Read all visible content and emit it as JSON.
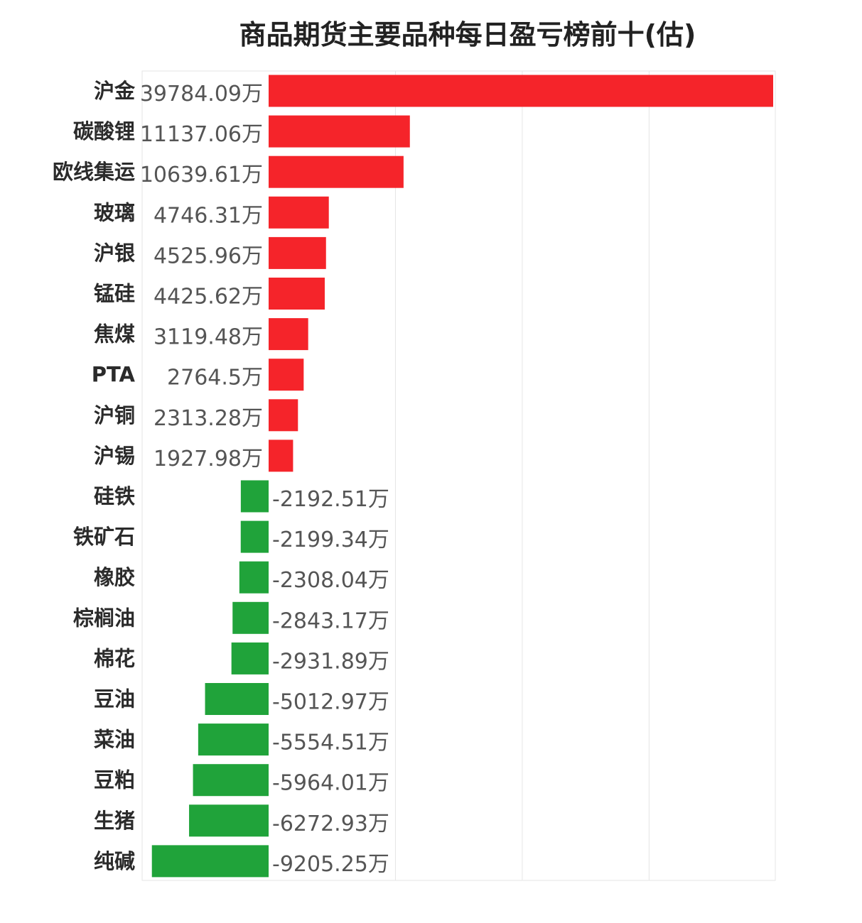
{
  "chart_data": {
    "type": "bar",
    "orientation": "horizontal",
    "title": "商品期货主要品种每日盈亏榜前十(估)",
    "unit": "万",
    "xlim": [
      -10000,
      40000
    ],
    "grid": true,
    "categories": [
      "沪金",
      "碳酸锂",
      "欧线集运",
      "玻璃",
      "沪银",
      "锰硅",
      "焦煤",
      "PTA",
      "沪铜",
      "沪锡",
      "硅铁",
      "铁矿石",
      "橡胶",
      "棕榈油",
      "棉花",
      "豆油",
      "菜油",
      "豆粕",
      "生猪",
      "纯碱"
    ],
    "values": [
      39784.09,
      11137.06,
      10639.61,
      4746.31,
      4525.96,
      4425.62,
      3119.48,
      2764.5,
      2313.28,
      1927.98,
      -2192.51,
      -2199.34,
      -2308.04,
      -2843.17,
      -2931.89,
      -5012.97,
      -5554.51,
      -5964.01,
      -6272.93,
      -9205.25
    ],
    "value_labels": [
      "39784.09万",
      "11137.06万",
      "10639.61万",
      "4746.31万",
      "4525.96万",
      "4425.62万",
      "3119.48万",
      "2764.5万",
      "2313.28万",
      "1927.98万",
      "-2192.51万",
      "-2199.34万",
      "-2308.04万",
      "-2843.17万",
      "-2931.89万",
      "-5012.97万",
      "-5554.51万",
      "-5964.01万",
      "-6272.93万",
      "-9205.25万"
    ],
    "colors": {
      "positive": "#f5242a",
      "negative": "#20a33a",
      "grid": "#e6e6e6"
    }
  }
}
